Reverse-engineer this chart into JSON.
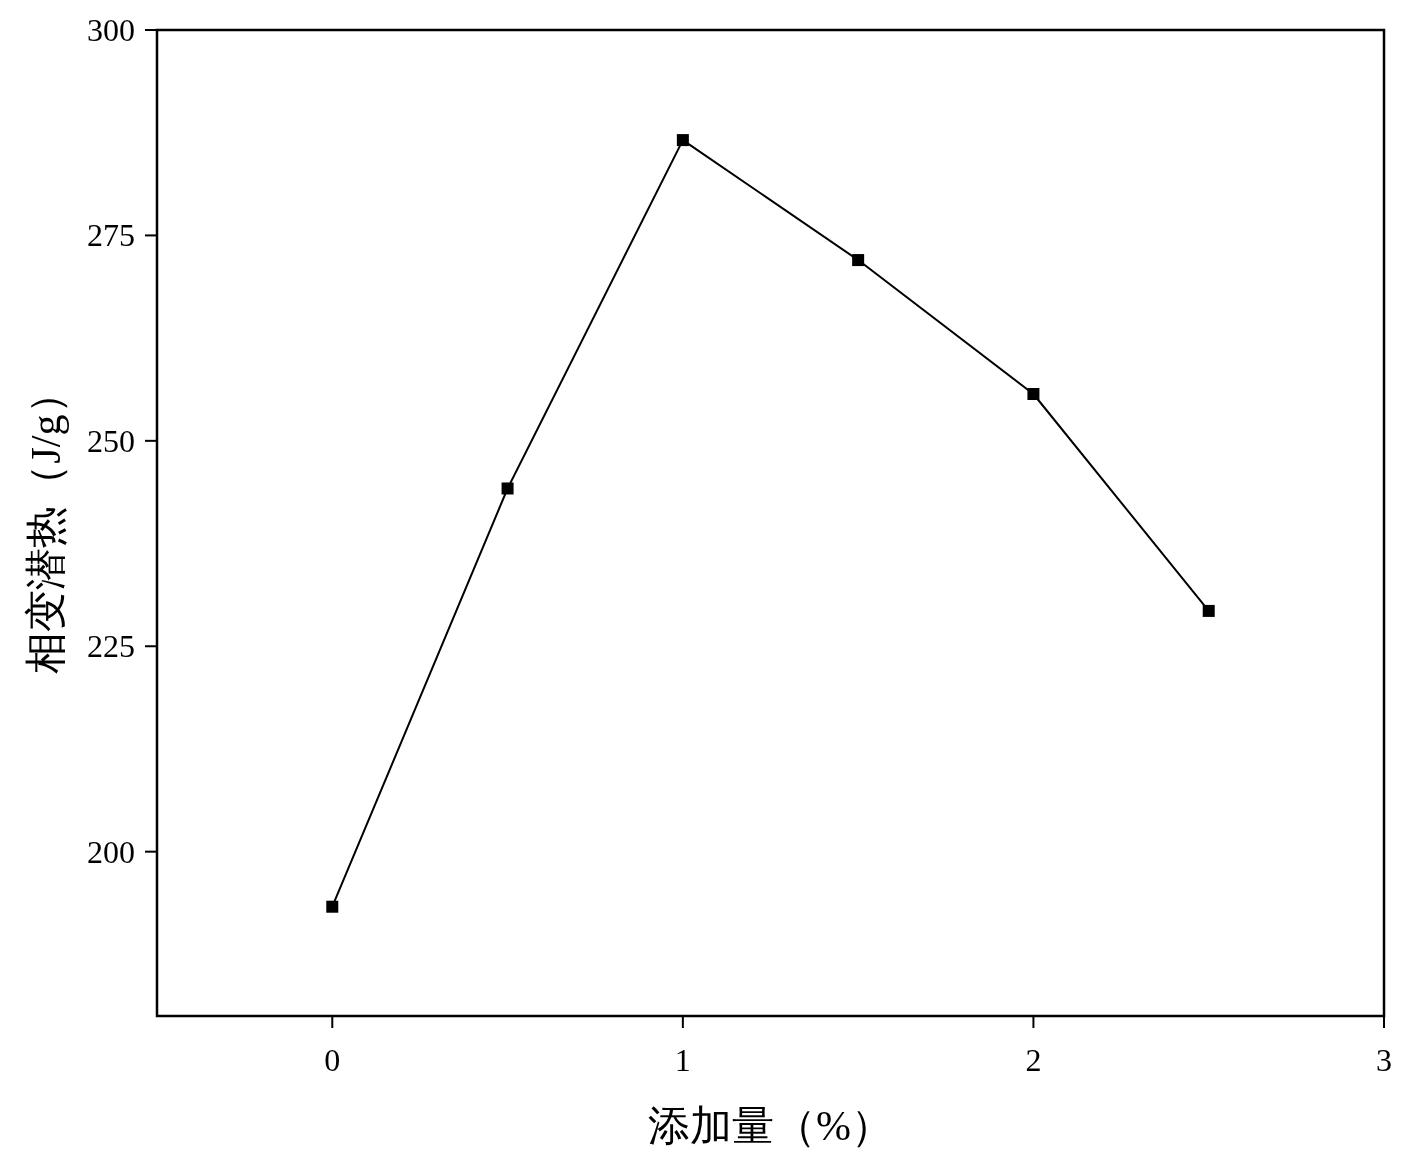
{
  "chart_data": {
    "type": "line",
    "xlabel": "添加量（%）",
    "ylabel": "相变潜热（J/g）",
    "x": [
      0,
      0.5,
      1,
      1.5,
      2,
      2.5
    ],
    "series": [
      {
        "color": "#000000",
        "values": [
          193.3,
          244.2,
          286.6,
          272.0,
          255.7,
          229.3
        ]
      }
    ],
    "xlim": [
      -0.5,
      3
    ],
    "ylim": [
      180,
      300
    ],
    "xticks": [
      0,
      1,
      2,
      3
    ],
    "yticks": [
      200,
      225,
      250,
      275,
      300
    ],
    "marker": "square",
    "line_style": "solid"
  }
}
